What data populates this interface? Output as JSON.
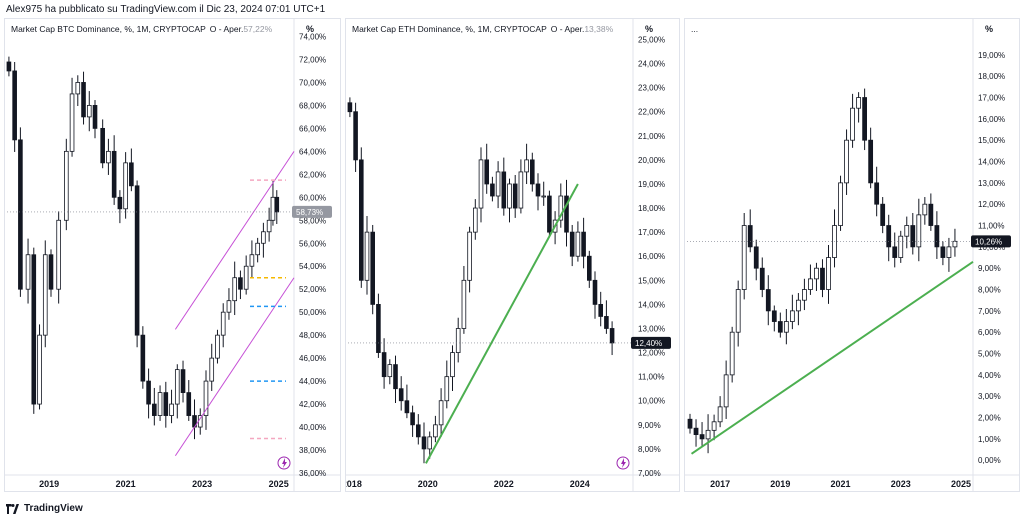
{
  "header": {
    "text": "Alex975 ha pubblicato su TradingView.com il Dic 23, 2024 07:01 UTC+1"
  },
  "footer": {
    "brand": "TradingView"
  },
  "colors": {
    "candle_up": "#ffffff",
    "candle_down": "#131722",
    "wick": "#131722",
    "channel": "#c64fd6",
    "trendline": "#4caf50",
    "grid": "#f0f3fa",
    "dash_yellow": "#f5b800",
    "dash_blue": "#2196f3",
    "dash_pink": "#f4a7c0",
    "axis_text": "#131722",
    "badge_bg": "#131722",
    "badge_grey": "#9598a1"
  },
  "panels": [
    {
      "title": "Market Cap BTC Dominance, %, 1M, CRYPTOCAP",
      "ohlc_prefix": "O - Aper.",
      "ohlc_value": "57,22%",
      "axis_unit": "%",
      "last_value_label": "58,73%",
      "x_ticks": [
        "2019",
        "2021",
        "2023",
        "2025"
      ],
      "has_lightning_icon": true
    },
    {
      "title": "Market Cap ETH Dominance, %, 1M, CRYPTOCAP",
      "ohlc_prefix": "O - Aper.",
      "ohlc_value": "13,38%",
      "axis_unit": "%",
      "last_value_label": "12,40%",
      "x_ticks": [
        "2018",
        "2020",
        "2022",
        "2024"
      ],
      "has_lightning_icon": true
    },
    {
      "title": "...",
      "ohlc_prefix": "",
      "ohlc_value": "",
      "axis_unit": "%",
      "last_value_label": "10,26%",
      "x_ticks": [
        "2017",
        "2019",
        "2021",
        "2023",
        "2025"
      ],
      "has_lightning_icon": false
    }
  ],
  "chart_data": [
    {
      "type": "candlestick",
      "title": "Market Cap BTC Dominance, %, 1M, CRYPTOCAP",
      "ylim": [
        36,
        75
      ],
      "xlim": [
        2017.9,
        2025.4
      ],
      "y_ticks": [
        "36,00%",
        "38,00%",
        "40,00%",
        "42,00%",
        "44,00%",
        "46,00%",
        "48,00%",
        "50,00%",
        "52,00%",
        "54,00%",
        "56,00%",
        "58,00%",
        "60,00%",
        "62,00%",
        "64,00%",
        "66,00%",
        "68,00%",
        "70,00%",
        "72,00%",
        "74,00%"
      ],
      "y_tick_values": [
        36,
        38,
        40,
        42,
        44,
        46,
        48,
        50,
        52,
        54,
        56,
        58,
        60,
        62,
        64,
        66,
        68,
        70,
        72,
        74
      ],
      "x_tick_values": [
        2019,
        2021,
        2023,
        2025
      ],
      "last_value": 58.73,
      "close_path": [
        [
          2017.95,
          71
        ],
        [
          2018.1,
          65
        ],
        [
          2018.25,
          52
        ],
        [
          2018.45,
          55
        ],
        [
          2018.6,
          42
        ],
        [
          2018.75,
          48
        ],
        [
          2018.9,
          55
        ],
        [
          2019.05,
          52
        ],
        [
          2019.25,
          58
        ],
        [
          2019.45,
          64
        ],
        [
          2019.6,
          69
        ],
        [
          2019.75,
          70
        ],
        [
          2019.9,
          67
        ],
        [
          2020.05,
          68
        ],
        [
          2020.2,
          66
        ],
        [
          2020.4,
          63
        ],
        [
          2020.55,
          64
        ],
        [
          2020.7,
          60
        ],
        [
          2020.85,
          59
        ],
        [
          2021.0,
          63
        ],
        [
          2021.15,
          61
        ],
        [
          2021.3,
          48
        ],
        [
          2021.45,
          44
        ],
        [
          2021.6,
          42
        ],
        [
          2021.75,
          41
        ],
        [
          2021.9,
          43
        ],
        [
          2022.05,
          41
        ],
        [
          2022.2,
          42
        ],
        [
          2022.35,
          45
        ],
        [
          2022.5,
          43
        ],
        [
          2022.65,
          41
        ],
        [
          2022.8,
          40
        ],
        [
          2022.95,
          41
        ],
        [
          2023.1,
          44
        ],
        [
          2023.25,
          46
        ],
        [
          2023.4,
          48
        ],
        [
          2023.55,
          50
        ],
        [
          2023.7,
          51
        ],
        [
          2023.85,
          53
        ],
        [
          2024.0,
          52
        ],
        [
          2024.15,
          54
        ],
        [
          2024.3,
          55
        ],
        [
          2024.45,
          56
        ],
        [
          2024.6,
          57
        ],
        [
          2024.75,
          58
        ],
        [
          2024.85,
          60
        ],
        [
          2024.95,
          58.73
        ]
      ],
      "channel": {
        "upper": [
          [
            2022.3,
            48.5
          ],
          [
            2025.5,
            64
          ]
        ],
        "lower": [
          [
            2022.3,
            37.5
          ],
          [
            2025.5,
            53
          ]
        ]
      },
      "dashed_levels": [
        {
          "value": 61.5,
          "color": "pink"
        },
        {
          "value": 53,
          "color": "yellow"
        },
        {
          "value": 50.5,
          "color": "blue"
        },
        {
          "value": 44,
          "color": "blue"
        },
        {
          "value": 39,
          "color": "pink"
        }
      ]
    },
    {
      "type": "candlestick",
      "title": "Market Cap ETH Dominance, %, 1M, CRYPTOCAP",
      "ylim": [
        7,
        25.6
      ],
      "xlim": [
        2017.9,
        2025.4
      ],
      "y_ticks": [
        "7,00%",
        "8,00%",
        "9,00%",
        "10,00%",
        "11,00%",
        "12,00%",
        "13,00%",
        "14,00%",
        "15,00%",
        "16,00%",
        "17,00%",
        "18,00%",
        "19,00%",
        "20,00%",
        "21,00%",
        "22,00%",
        "23,00%",
        "24,00%",
        "25,00%"
      ],
      "y_tick_values": [
        7,
        8,
        9,
        10,
        11,
        12,
        13,
        14,
        15,
        16,
        17,
        18,
        19,
        20,
        21,
        22,
        23,
        24,
        25
      ],
      "x_tick_values": [
        2018,
        2020,
        2022,
        2024
      ],
      "last_value": 12.4,
      "close_path": [
        [
          2017.95,
          22
        ],
        [
          2018.1,
          20
        ],
        [
          2018.25,
          15
        ],
        [
          2018.4,
          17
        ],
        [
          2018.55,
          14
        ],
        [
          2018.7,
          12
        ],
        [
          2018.85,
          11
        ],
        [
          2019.0,
          11.5
        ],
        [
          2019.15,
          10.5
        ],
        [
          2019.3,
          10
        ],
        [
          2019.45,
          9.5
        ],
        [
          2019.6,
          9
        ],
        [
          2019.75,
          8.5
        ],
        [
          2019.9,
          8
        ],
        [
          2020.05,
          8.5
        ],
        [
          2020.2,
          9
        ],
        [
          2020.35,
          10
        ],
        [
          2020.5,
          11
        ],
        [
          2020.65,
          12
        ],
        [
          2020.8,
          13
        ],
        [
          2020.95,
          15
        ],
        [
          2021.1,
          17
        ],
        [
          2021.25,
          18
        ],
        [
          2021.4,
          20
        ],
        [
          2021.55,
          19
        ],
        [
          2021.7,
          18.5
        ],
        [
          2021.85,
          19.5
        ],
        [
          2022.0,
          18
        ],
        [
          2022.15,
          19
        ],
        [
          2022.3,
          18
        ],
        [
          2022.45,
          19.5
        ],
        [
          2022.6,
          20
        ],
        [
          2022.75,
          19
        ],
        [
          2022.9,
          18.5
        ],
        [
          2023.05,
          18.5
        ],
        [
          2023.2,
          17
        ],
        [
          2023.35,
          17.5
        ],
        [
          2023.5,
          18.5
        ],
        [
          2023.65,
          17
        ],
        [
          2023.8,
          16
        ],
        [
          2023.95,
          17
        ],
        [
          2024.1,
          16
        ],
        [
          2024.25,
          15
        ],
        [
          2024.4,
          14
        ],
        [
          2024.55,
          13.5
        ],
        [
          2024.7,
          13
        ],
        [
          2024.85,
          12.4
        ]
      ],
      "trendline": [
        [
          2019.95,
          7.4
        ],
        [
          2023.95,
          19
        ]
      ]
    },
    {
      "type": "candlestick",
      "title": "...",
      "ylim": [
        -0.6,
        20.4
      ],
      "xlim": [
        2015.9,
        2025.4
      ],
      "y_ticks": [
        "0,00%",
        "1,00%",
        "2,00%",
        "3,00%",
        "4,00%",
        "5,00%",
        "6,00%",
        "7,00%",
        "8,00%",
        "9,00%",
        "10,00%",
        "11,00%",
        "12,00%",
        "13,00%",
        "14,00%",
        "15,00%",
        "16,00%",
        "17,00%",
        "18,00%",
        "19,00%"
      ],
      "y_tick_values": [
        0,
        1,
        2,
        3,
        4,
        5,
        6,
        7,
        8,
        9,
        10,
        11,
        12,
        13,
        14,
        15,
        16,
        17,
        18,
        19
      ],
      "x_tick_values": [
        2017,
        2019,
        2021,
        2023,
        2025
      ],
      "last_value": 10.26,
      "close_path": [
        [
          2016.0,
          1.5
        ],
        [
          2016.2,
          1.2
        ],
        [
          2016.4,
          1.0
        ],
        [
          2016.6,
          1.4
        ],
        [
          2016.8,
          1.8
        ],
        [
          2017.0,
          2.5
        ],
        [
          2017.2,
          4
        ],
        [
          2017.4,
          6
        ],
        [
          2017.6,
          8
        ],
        [
          2017.8,
          11
        ],
        [
          2018.0,
          10
        ],
        [
          2018.2,
          9
        ],
        [
          2018.4,
          8
        ],
        [
          2018.6,
          7
        ],
        [
          2018.8,
          6.5
        ],
        [
          2019.0,
          6
        ],
        [
          2019.2,
          6.5
        ],
        [
          2019.4,
          7
        ],
        [
          2019.6,
          7.5
        ],
        [
          2019.8,
          8
        ],
        [
          2020.0,
          8.5
        ],
        [
          2020.2,
          9
        ],
        [
          2020.4,
          8
        ],
        [
          2020.6,
          9.5
        ],
        [
          2020.8,
          11
        ],
        [
          2021.0,
          13
        ],
        [
          2021.2,
          15
        ],
        [
          2021.4,
          16.5
        ],
        [
          2021.6,
          17
        ],
        [
          2021.8,
          15
        ],
        [
          2022.0,
          13
        ],
        [
          2022.2,
          12
        ],
        [
          2022.4,
          11
        ],
        [
          2022.6,
          10
        ],
        [
          2022.8,
          9.5
        ],
        [
          2023.0,
          10.5
        ],
        [
          2023.2,
          11
        ],
        [
          2023.4,
          10
        ],
        [
          2023.6,
          11.5
        ],
        [
          2023.8,
          12
        ],
        [
          2024.0,
          11
        ],
        [
          2024.2,
          10
        ],
        [
          2024.4,
          9.5
        ],
        [
          2024.6,
          10
        ],
        [
          2024.8,
          10.26
        ]
      ],
      "trendline": [
        [
          2016.05,
          0.3
        ],
        [
          2025.4,
          9.3
        ]
      ]
    }
  ]
}
